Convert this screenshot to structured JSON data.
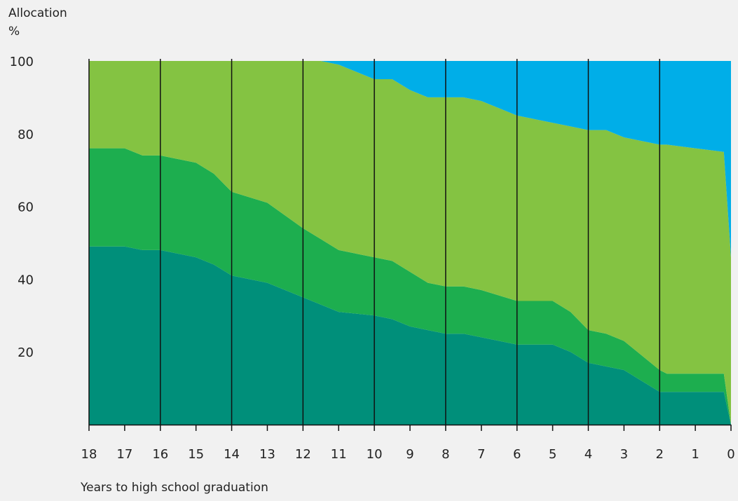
{
  "chart_data": {
    "type": "area",
    "stacked": true,
    "ylabel": [
      "Allocation",
      "%"
    ],
    "xlabel": "Years to high school graduation",
    "x_ticks": [
      18,
      17,
      16,
      15,
      14,
      13,
      12,
      11,
      10,
      9,
      8,
      7,
      6,
      5,
      4,
      3,
      2,
      1,
      0
    ],
    "y_ticks": [
      20,
      40,
      60,
      80,
      100
    ],
    "xlim": [
      18,
      0
    ],
    "ylim": [
      0,
      100
    ],
    "gridlines_x": [
      18,
      16,
      14,
      12,
      10,
      8,
      6,
      4,
      2
    ],
    "x": [
      18,
      17,
      16.5,
      16,
      15,
      14.5,
      14,
      13,
      12,
      11.5,
      11,
      10,
      9.5,
      9,
      8.5,
      8,
      7.5,
      7,
      6,
      5,
      4.5,
      4,
      3.5,
      3,
      2.5,
      2,
      1.8,
      1,
      0.2,
      0
    ],
    "series": [
      {
        "color": "#008f7a",
        "values": [
          49,
          49,
          48,
          48,
          46,
          44,
          41,
          39,
          35,
          33,
          31,
          30,
          29,
          27,
          26,
          25,
          25,
          24,
          22,
          22,
          20,
          17,
          16,
          15,
          12,
          9,
          9,
          9,
          9,
          0
        ]
      },
      {
        "color": "#1dae4f",
        "values": [
          27,
          27,
          26,
          26,
          26,
          25,
          23,
          22,
          19,
          18,
          17,
          16,
          16,
          15,
          13,
          13,
          13,
          13,
          12,
          12,
          11,
          9,
          9,
          8,
          7,
          6,
          5,
          5,
          5,
          0
        ]
      },
      {
        "color": "#84c342",
        "values": [
          24,
          24,
          26,
          26,
          28,
          31,
          36,
          39,
          46,
          49,
          51,
          49,
          50,
          50,
          51,
          52,
          52,
          52,
          51,
          49,
          51,
          55,
          56,
          56,
          59,
          62,
          63,
          62,
          61,
          46
        ]
      },
      {
        "color": "#00aee8",
        "values": [
          0,
          0,
          0,
          0,
          0,
          0,
          0,
          0,
          0,
          0,
          1,
          5,
          5,
          8,
          10,
          10,
          10,
          11,
          15,
          17,
          18,
          19,
          19,
          21,
          22,
          23,
          23,
          24,
          25,
          54
        ]
      }
    ]
  }
}
